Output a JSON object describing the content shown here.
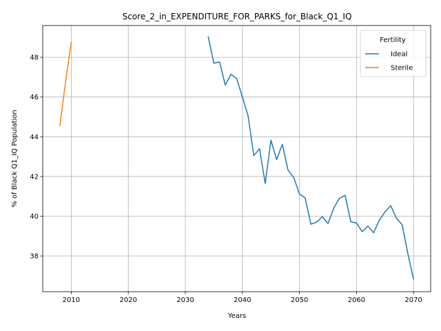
{
  "chart_data": {
    "type": "line",
    "title": "Score_2_in_EXPENDITURE_FOR_PARKS_for_Black_Q1_IQ",
    "xlabel": "Years",
    "ylabel": "% of Black Q1_IQ Population",
    "xlim": [
      2005,
      2073
    ],
    "ylim": [
      36.2,
      49.6
    ],
    "x_ticks": [
      2010,
      2020,
      2030,
      2040,
      2050,
      2060,
      2070
    ],
    "y_ticks": [
      38,
      40,
      42,
      44,
      46,
      48
    ],
    "grid": true,
    "legend": {
      "title": "Fertility",
      "placement": "top-right"
    },
    "series": [
      {
        "name": "Ideal",
        "color": "#1f77b4",
        "x": [
          2034,
          2035,
          2036,
          2037,
          2038,
          2039,
          2040,
          2041,
          2042,
          2043,
          2044,
          2045,
          2046,
          2047,
          2048,
          2049,
          2050,
          2051,
          2052,
          2053,
          2054,
          2055,
          2056,
          2057,
          2058,
          2059,
          2060,
          2061,
          2062,
          2063,
          2064,
          2065,
          2066,
          2067,
          2068,
          2069,
          2070
        ],
        "y": [
          49.05,
          47.7,
          47.77,
          46.6,
          47.15,
          46.92,
          46.0,
          45.05,
          43.05,
          43.4,
          41.65,
          43.82,
          42.85,
          43.62,
          42.32,
          41.95,
          41.12,
          40.92,
          39.6,
          39.7,
          39.98,
          39.63,
          40.4,
          40.9,
          41.05,
          39.72,
          39.66,
          39.22,
          39.5,
          39.17,
          39.8,
          40.22,
          40.53,
          39.9,
          39.57,
          38.12,
          36.82
        ]
      },
      {
        "name": "Sterile",
        "color": "#ff7f0e",
        "x": [
          2008,
          2009,
          2010
        ],
        "y": [
          44.55,
          46.75,
          48.77
        ]
      }
    ]
  }
}
